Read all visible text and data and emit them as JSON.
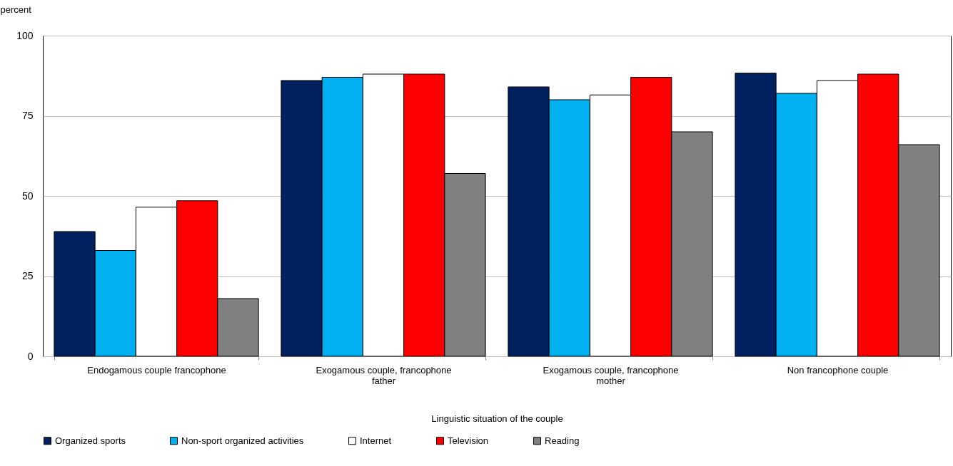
{
  "chart_data": {
    "type": "bar",
    "ylabel": "percent",
    "xlabel": "Linguistic situation of the couple",
    "categories": [
      "Endogamous couple francophone",
      "Exogamous couple, francophone father",
      "Exogamous couple, francophone mother",
      "Non francophone couple"
    ],
    "series": [
      {
        "name": "Organized sports",
        "color": "#002060",
        "values": [
          38.9,
          86,
          84,
          88.3
        ]
      },
      {
        "name": "Non-sport organized activities",
        "color": "#00b0f0",
        "values": [
          33,
          87,
          80,
          82
        ]
      },
      {
        "name": "Internet",
        "color": "#ffffff",
        "values": [
          46.5,
          88,
          81.5,
          86
        ]
      },
      {
        "name": "Television",
        "color": "#ff0000",
        "values": [
          48.5,
          88,
          87,
          88
        ]
      },
      {
        "name": "Reading",
        "color": "#808080",
        "values": [
          18,
          57,
          70,
          66
        ]
      }
    ],
    "ylim": [
      0,
      100
    ],
    "yticks": [
      0,
      25,
      50,
      75,
      100
    ],
    "grid": "y",
    "legend": "bottom"
  }
}
